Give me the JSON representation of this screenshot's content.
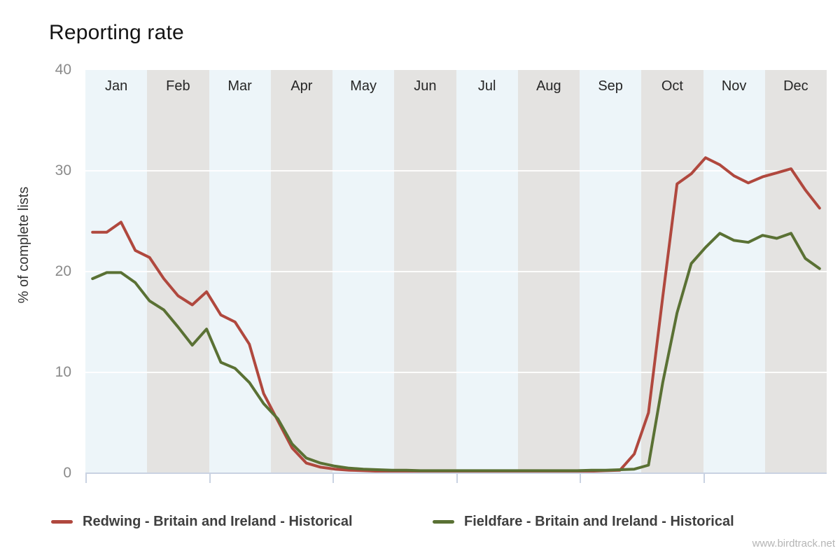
{
  "title": "Reporting rate",
  "y_axis_title": "% of complete lists",
  "watermark": "www.birdtrack.net",
  "colors": {
    "band_light_blue": "#EDF5F9",
    "band_gray": "#E4E3E1",
    "gridline": "rgba(255,255,255,0.9)",
    "axis_line": "#C9D2E2",
    "tick_label": "#8A8A8A",
    "month_label": "#262626",
    "legend_text": "#3F3F3F",
    "watermark_text": "#B5B5B5",
    "title_text": "#141414",
    "redwing_line": "#B0483E",
    "fieldfare_line": "#5A7134"
  },
  "chart_data": {
    "type": "line",
    "title": "Reporting rate",
    "ylabel": "% of complete lists",
    "ylim": [
      0,
      40
    ],
    "y_ticks": [
      40,
      30,
      20,
      10,
      0
    ],
    "x_months": [
      "Jan",
      "Feb",
      "Mar",
      "Apr",
      "May",
      "Jun",
      "Jul",
      "Aug",
      "Sep",
      "Oct",
      "Nov",
      "Dec"
    ],
    "x_unit": "52 weekly points across the year",
    "x_tick_months": [
      "Jan",
      "Mar",
      "May",
      "Jul",
      "Sep",
      "Nov"
    ],
    "grid": "horizontal gridlines at 10, 20, 30; alternating month background bands",
    "legend_position": "bottom",
    "series": [
      {
        "name": "Redwing - Britain and Ireland - Historical",
        "color": "#B0483E",
        "values": [
          23.9,
          23.9,
          24.9,
          22.1,
          21.4,
          19.3,
          17.6,
          16.7,
          18.0,
          15.7,
          15.0,
          12.8,
          7.9,
          5.2,
          2.5,
          1.0,
          0.6,
          0.4,
          0.3,
          0.25,
          0.2,
          0.2,
          0.15,
          0.15,
          0.15,
          0.15,
          0.15,
          0.15,
          0.15,
          0.15,
          0.15,
          0.15,
          0.15,
          0.15,
          0.2,
          0.2,
          0.25,
          0.3,
          1.9,
          6.0,
          17.5,
          28.7,
          29.7,
          31.3,
          30.6,
          29.5,
          28.8,
          29.4,
          29.8,
          30.2,
          28.1,
          26.3
        ]
      },
      {
        "name": "Fieldfare - Britain and Ireland - Historical",
        "color": "#5A7134",
        "values": [
          19.3,
          19.9,
          19.9,
          18.9,
          17.1,
          16.2,
          14.5,
          12.7,
          14.3,
          11.0,
          10.4,
          9.0,
          6.9,
          5.4,
          2.9,
          1.5,
          1.0,
          0.7,
          0.5,
          0.4,
          0.35,
          0.3,
          0.3,
          0.25,
          0.25,
          0.25,
          0.25,
          0.25,
          0.25,
          0.25,
          0.25,
          0.25,
          0.25,
          0.25,
          0.25,
          0.3,
          0.3,
          0.35,
          0.4,
          0.8,
          9.0,
          15.9,
          20.8,
          22.4,
          23.8,
          23.1,
          22.9,
          23.6,
          23.3,
          23.8,
          21.3,
          20.3
        ]
      }
    ]
  }
}
